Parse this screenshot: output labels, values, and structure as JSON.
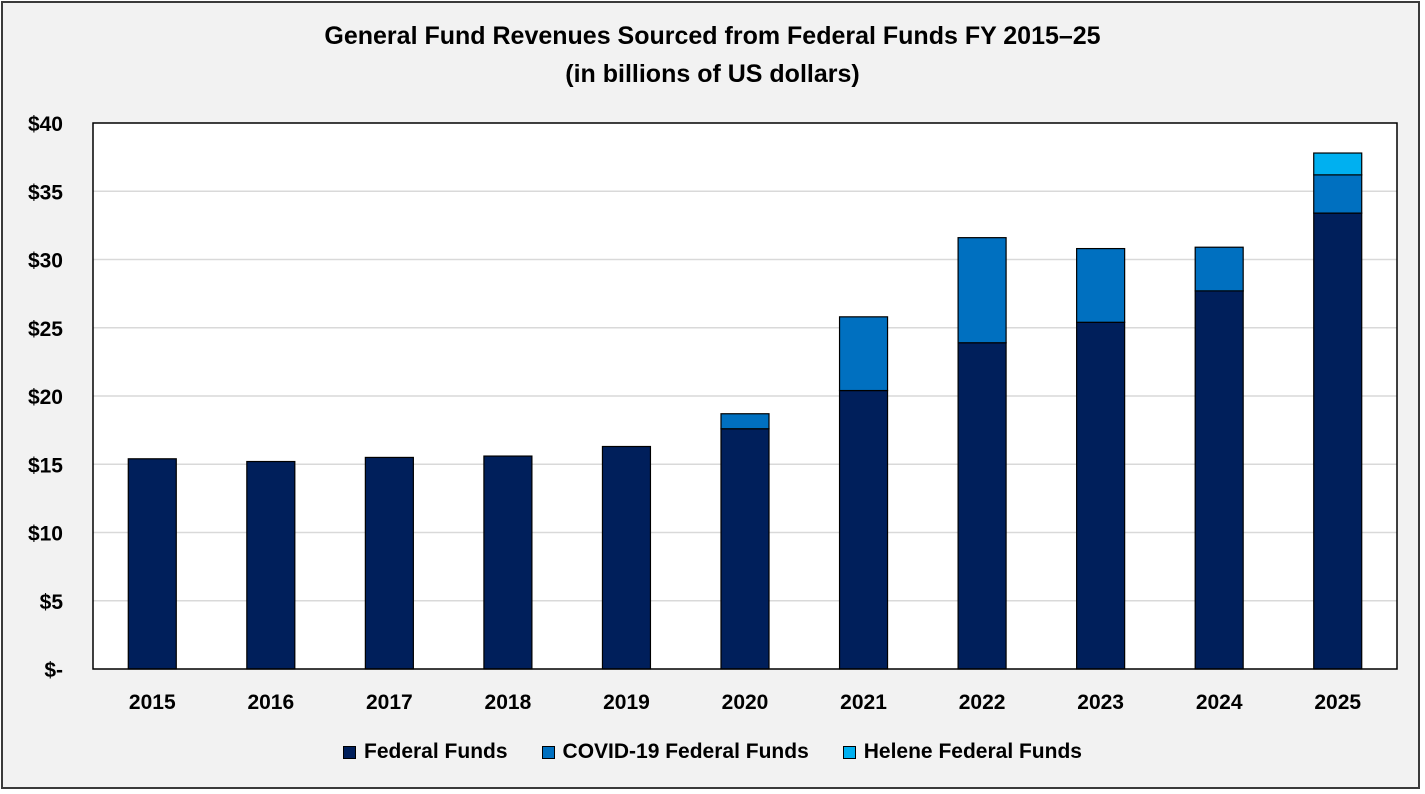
{
  "chart_data": {
    "type": "bar",
    "stacked": true,
    "title": "General Fund Revenues Sourced from Federal Funds FY 2015–25",
    "subtitle": "(in billions of US dollars)",
    "xlabel": "",
    "ylabel": "",
    "ylim": [
      0,
      40
    ],
    "yticks": [
      0,
      5,
      10,
      15,
      20,
      25,
      30,
      35,
      40
    ],
    "ytick_labels": [
      "$-",
      "$5",
      "$10",
      "$15",
      "$20",
      "$25",
      "$30",
      "$35",
      "$40"
    ],
    "grid": true,
    "legend_position": "bottom",
    "categories": [
      "2015",
      "2016",
      "2017",
      "2018",
      "2019",
      "2020",
      "2021",
      "2022",
      "2023",
      "2024",
      "2025"
    ],
    "series": [
      {
        "name": "Federal Funds",
        "color": "#001f5b",
        "values": [
          15.4,
          15.2,
          15.5,
          15.6,
          16.3,
          17.6,
          20.4,
          23.9,
          25.4,
          27.7,
          33.4
        ]
      },
      {
        "name": "COVID-19 Federal Funds",
        "color": "#0070c0",
        "values": [
          0,
          0,
          0,
          0,
          0,
          1.1,
          5.4,
          7.7,
          5.4,
          3.2,
          2.8
        ]
      },
      {
        "name": "Helene Federal Funds",
        "color": "#00b0f0",
        "values": [
          0,
          0,
          0,
          0,
          0,
          0,
          0,
          0,
          0,
          0,
          1.6
        ]
      }
    ]
  }
}
